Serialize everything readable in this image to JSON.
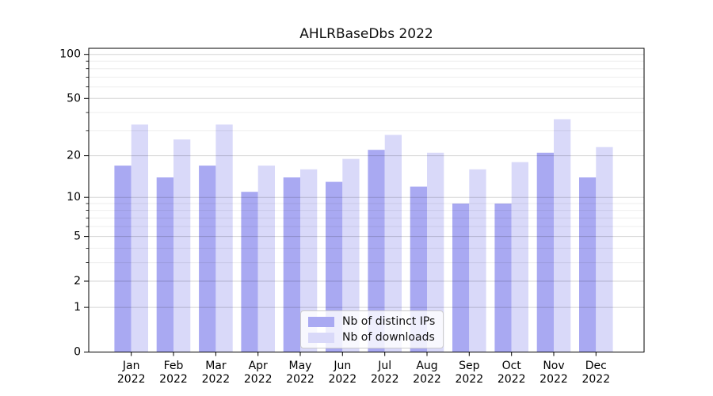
{
  "chart_data": {
    "type": "bar",
    "title": "AHLRBaseDbs 2022",
    "categories": [
      "Jan",
      "Feb",
      "Mar",
      "Apr",
      "May",
      "Jun",
      "Jul",
      "Aug",
      "Sep",
      "Oct",
      "Nov",
      "Dec"
    ],
    "x_tick_year": "2022",
    "series": [
      {
        "name": "Nb of distinct IPs",
        "color": "#a9a9f2",
        "values": [
          17,
          14,
          17,
          11,
          14,
          13,
          22,
          12,
          9,
          9,
          21,
          14
        ]
      },
      {
        "name": "Nb of downloads",
        "color": "#d9d9f9",
        "values": [
          33,
          26,
          33,
          17,
          16,
          19,
          28,
          21,
          16,
          18,
          36,
          23
        ]
      }
    ],
    "yscale": "log1p",
    "ylim": [
      0,
      110
    ],
    "y_major_ticks": [
      0,
      1,
      2,
      5,
      10,
      20,
      50,
      100
    ],
    "y_minor_ticks": [
      3,
      4,
      6,
      7,
      8,
      9,
      30,
      40,
      60,
      70,
      80,
      90
    ],
    "grid": "horizontal major and minor, drawn over bars",
    "legend_position": "lower center inside plot",
    "xlabel": "",
    "ylabel": ""
  }
}
